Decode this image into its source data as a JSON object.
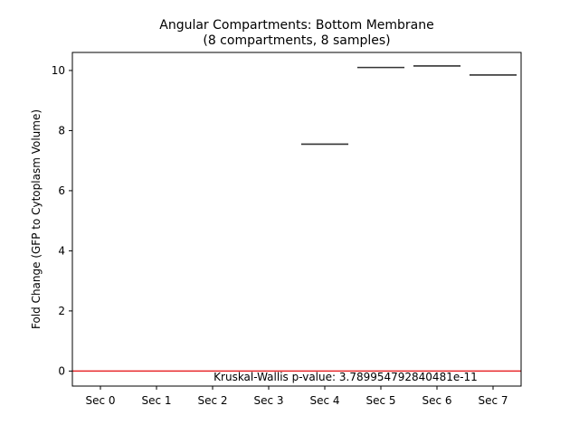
{
  "chart_data": {
    "type": "box",
    "title": "Angular Compartments: Bottom Membrane",
    "subtitle": "(8 compartments, 8 samples)",
    "xlabel": "",
    "ylabel": "Fold Change (GFP to Cytoplasm Volume)",
    "categories": [
      "Sec 0",
      "Sec 1",
      "Sec 2",
      "Sec 3",
      "Sec 4",
      "Sec 5",
      "Sec 6",
      "Sec 7"
    ],
    "values": [
      null,
      null,
      null,
      null,
      7.55,
      10.1,
      10.15,
      9.85
    ],
    "ylim": [
      -0.5,
      10.6
    ],
    "yticks": [
      0,
      2,
      4,
      6,
      8,
      10
    ],
    "reference_line": {
      "y": 0,
      "color": "#e8262a"
    },
    "annotation": "Kruskal-Wallis p-value: 3.789954792840481e-11",
    "grid": false,
    "colors": {
      "median_line": "#333333",
      "axis": "#000000",
      "reference": "#e8262a"
    }
  }
}
